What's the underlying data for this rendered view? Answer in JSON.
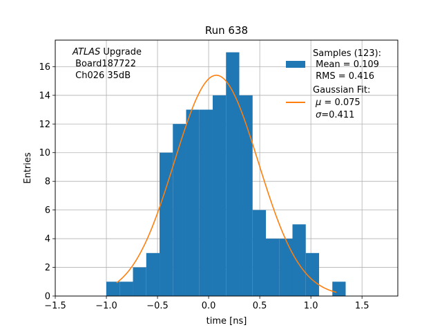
{
  "chart_data": {
    "type": "bar",
    "title": "Run 638",
    "xlabel": "time [ns]",
    "ylabel": "Entries",
    "xlim": [
      -1.5,
      1.85
    ],
    "ylim": [
      0,
      17.85
    ],
    "grid": true,
    "xticks": [
      -1.5,
      -1.0,
      -0.5,
      0.0,
      0.5,
      1.0,
      1.5
    ],
    "xtick_labels": [
      "−1.5",
      "−1.0",
      "−0.5",
      "0.0",
      "0.5",
      "1.0",
      "1.5"
    ],
    "yticks": [
      0,
      2,
      4,
      6,
      8,
      10,
      12,
      14,
      16
    ],
    "ytick_labels": [
      "0",
      "2",
      "4",
      "6",
      "8",
      "10",
      "12",
      "14",
      "16"
    ],
    "histogram": {
      "bin_edges": [
        -1.0,
        -0.87,
        -0.74,
        -0.61,
        -0.48,
        -0.35,
        -0.22,
        -0.09,
        0.04,
        0.17,
        0.3,
        0.43,
        0.56,
        0.69,
        0.82,
        0.95,
        1.08,
        1.21,
        1.34
      ],
      "counts": [
        1,
        1,
        2,
        3,
        10,
        12,
        13,
        13,
        14,
        17,
        14,
        6,
        4,
        4,
        5,
        3,
        0,
        1
      ],
      "color": "#1f77b4"
    },
    "fit": {
      "mu": 0.075,
      "sigma": 0.411,
      "amplitude": 15.4,
      "x_range": [
        -0.9,
        1.25
      ],
      "color": "#ff7f0e"
    },
    "legend": {
      "placement": "top-right",
      "samples": [
        "Samples (123):",
        " Mean = 0.109",
        " RMS = 0.416"
      ],
      "fit_title": "Gaussian Fit:",
      "fit_mu_symbol": "μ",
      "fit_mu_value": " = 0.075",
      "fit_sigma_symbol": "σ",
      "fit_sigma_value": "=0.411"
    },
    "annotation": {
      "atlas": "ATLAS",
      "upgrade": " Upgrade",
      "board": " Board187722",
      "channel": " Ch026 35dB"
    }
  }
}
